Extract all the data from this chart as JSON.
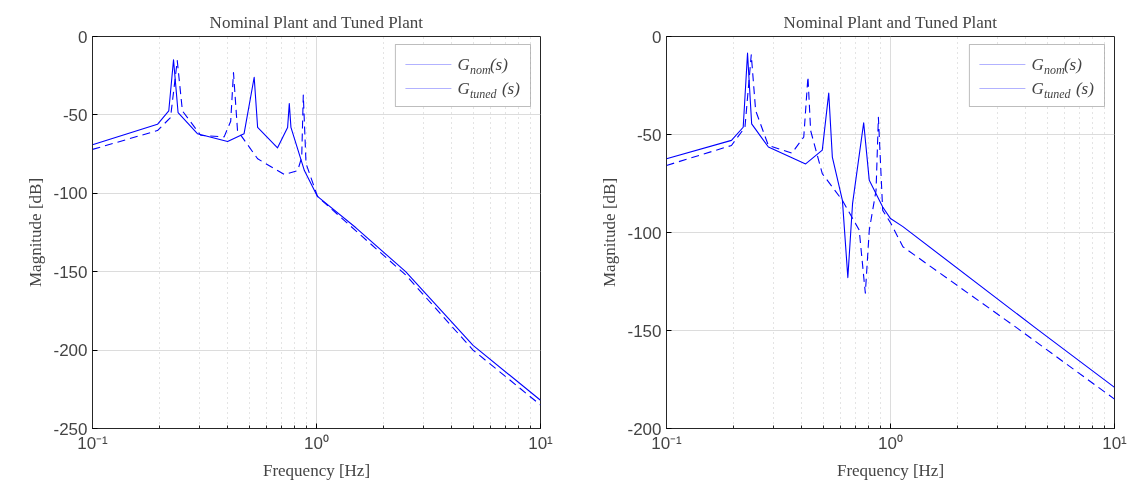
{
  "chart_data": [
    {
      "type": "line",
      "title": "Nominal Plant and Tuned Plant",
      "xlabel": "Frequency [Hz]",
      "ylabel": "Magnitude [dB]",
      "log": "x",
      "xlim": [
        0.1,
        10
      ],
      "xticks": [
        {
          "value": 0.1,
          "label": "10⁻¹"
        },
        {
          "value": 1,
          "label": "10⁰"
        },
        {
          "value": 10,
          "label": "10¹"
        }
      ],
      "ylim": [
        -250,
        0
      ],
      "yticks": [
        -250,
        -200,
        -150,
        -100,
        -50,
        0
      ],
      "grid": true,
      "legend": "top right",
      "series": [
        {
          "name": "G$_{nom}$(s)",
          "color": "#0000ff",
          "line_style": "dashed",
          "x": [
            0.1,
            0.195,
            0.223,
            0.239,
            0.252,
            0.304,
            0.387,
            0.414,
            0.426,
            0.444,
            0.546,
            0.718,
            0.824,
            0.859,
            0.873,
            0.898,
            1.01,
            1.5,
            2.5,
            5,
            10
          ],
          "values": [
            -72,
            -60,
            -51.7,
            -15.4,
            -47.5,
            -63,
            -64,
            -54,
            -23,
            -60,
            -78,
            -88,
            -85.5,
            -77,
            -37.3,
            -81,
            -102,
            -124,
            -152,
            -200,
            -235
          ]
        },
        {
          "name": "G$_{tuned}$(s)",
          "color": "#0000ff",
          "line_style": "solid",
          "x": [
            0.1,
            0.195,
            0.219,
            0.23,
            0.241,
            0.294,
            0.401,
            0.475,
            0.527,
            0.546,
            0.67,
            0.743,
            0.756,
            0.769,
            0.883,
            1.01,
            1.5,
            2.5,
            5,
            10
          ],
          "values": [
            -69,
            -56,
            -47.5,
            -14.8,
            -48.5,
            -62,
            -67,
            -62,
            -26,
            -58,
            -71,
            -58,
            -42.8,
            -58,
            -85.5,
            -102,
            -122,
            -150,
            -197,
            -232
          ]
        }
      ]
    },
    {
      "type": "line",
      "title": "Nominal Plant and Tuned Plant",
      "xlabel": "Frequency [Hz]",
      "ylabel": "Magnitude [dB]",
      "log": "x",
      "xlim": [
        0.1,
        10
      ],
      "xticks": [
        {
          "value": 0.1,
          "label": "10⁻¹"
        },
        {
          "value": 1,
          "label": "10⁰"
        },
        {
          "value": 10,
          "label": "10¹"
        }
      ],
      "ylim": [
        -200,
        0
      ],
      "yticks": [
        -200,
        -150,
        -100,
        -50,
        0
      ],
      "grid": true,
      "legend": "top right",
      "series": [
        {
          "name": "G$_{nom}$(s)",
          "color": "#0000ff",
          "line_style": "dashed",
          "x": [
            0.1,
            0.195,
            0.224,
            0.239,
            0.25,
            0.285,
            0.363,
            0.41,
            0.428,
            0.44,
            0.496,
            0.61,
            0.725,
            0.772,
            0.804,
            0.862,
            0.883,
            0.923,
            1.0,
            1.136,
            3.68,
            10
          ],
          "values": [
            -65.8,
            -55.6,
            -46.3,
            -9.3,
            -37.8,
            -55.6,
            -59.5,
            -51.3,
            -20.5,
            -48,
            -70,
            -83.6,
            -98.8,
            -131,
            -98.8,
            -78.5,
            -41.2,
            -88.7,
            -95,
            -107.3,
            -148.8,
            -185
          ]
        },
        {
          "name": "G$_{tuned}$(s)",
          "color": "#0000ff",
          "line_style": "solid",
          "x": [
            0.1,
            0.195,
            0.22,
            0.23,
            0.24,
            0.285,
            0.418,
            0.496,
            0.53,
            0.55,
            0.61,
            0.645,
            0.677,
            0.759,
            0.804,
            0.923,
            1.0,
            1.136,
            4.45,
            10
          ],
          "values": [
            -62.4,
            -53,
            -46.3,
            -8.5,
            -44.6,
            -56.4,
            -65,
            -58,
            -28.8,
            -61.5,
            -83.6,
            -123,
            -85.3,
            -44,
            -73.4,
            -87,
            -92.9,
            -97,
            -148.8,
            -179
          ]
        }
      ]
    }
  ]
}
